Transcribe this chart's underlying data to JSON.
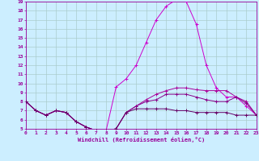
{
  "background_color": "#cceeff",
  "grid_color": "#aacccc",
  "line_color": "#990099",
  "xlabel": "Windchill (Refroidissement éolien,°C)",
  "x": [
    0,
    1,
    2,
    3,
    4,
    5,
    6,
    7,
    8,
    9,
    10,
    11,
    12,
    13,
    14,
    15,
    16,
    17,
    18,
    19,
    20,
    21,
    22,
    23
  ],
  "series": [
    [
      8.0,
      7.0,
      6.5,
      7.0,
      6.8,
      5.8,
      5.2,
      4.8,
      4.8,
      9.6,
      10.5,
      12.0,
      14.5,
      17.0,
      18.5,
      19.2,
      19.0,
      16.5,
      12.0,
      9.5,
      8.5,
      8.5,
      7.5,
      6.5
    ],
    [
      8.0,
      7.0,
      6.5,
      7.0,
      6.8,
      5.8,
      5.2,
      4.8,
      4.8,
      5.0,
      6.8,
      7.5,
      8.2,
      8.8,
      9.2,
      9.5,
      9.5,
      9.3,
      9.2,
      9.2,
      9.2,
      8.5,
      8.0,
      6.5
    ],
    [
      8.0,
      7.0,
      6.5,
      7.0,
      6.8,
      5.8,
      5.2,
      4.8,
      4.8,
      5.0,
      6.8,
      7.5,
      8.0,
      8.2,
      8.8,
      8.8,
      8.8,
      8.5,
      8.2,
      8.0,
      8.0,
      8.5,
      7.8,
      6.5
    ],
    [
      8.0,
      7.0,
      6.5,
      7.0,
      6.8,
      5.8,
      5.2,
      4.8,
      4.8,
      5.0,
      6.8,
      7.2,
      7.2,
      7.2,
      7.2,
      7.0,
      7.0,
      6.8,
      6.8,
      6.8,
      6.8,
      6.5,
      6.5,
      6.5
    ]
  ],
  "ylim": [
    5,
    19
  ],
  "xlim": [
    0,
    23
  ],
  "yticks": [
    5,
    6,
    7,
    8,
    9,
    10,
    11,
    12,
    13,
    14,
    15,
    16,
    17,
    18,
    19
  ],
  "xticks": [
    0,
    1,
    2,
    3,
    4,
    5,
    6,
    7,
    8,
    9,
    10,
    11,
    12,
    13,
    14,
    15,
    16,
    17,
    18,
    19,
    20,
    21,
    22,
    23
  ],
  "tick_fontsize": 4.5,
  "xlabel_fontsize": 5.0,
  "line_width": 0.7,
  "marker_size": 2.5,
  "figsize": [
    3.2,
    2.0
  ],
  "dpi": 100
}
